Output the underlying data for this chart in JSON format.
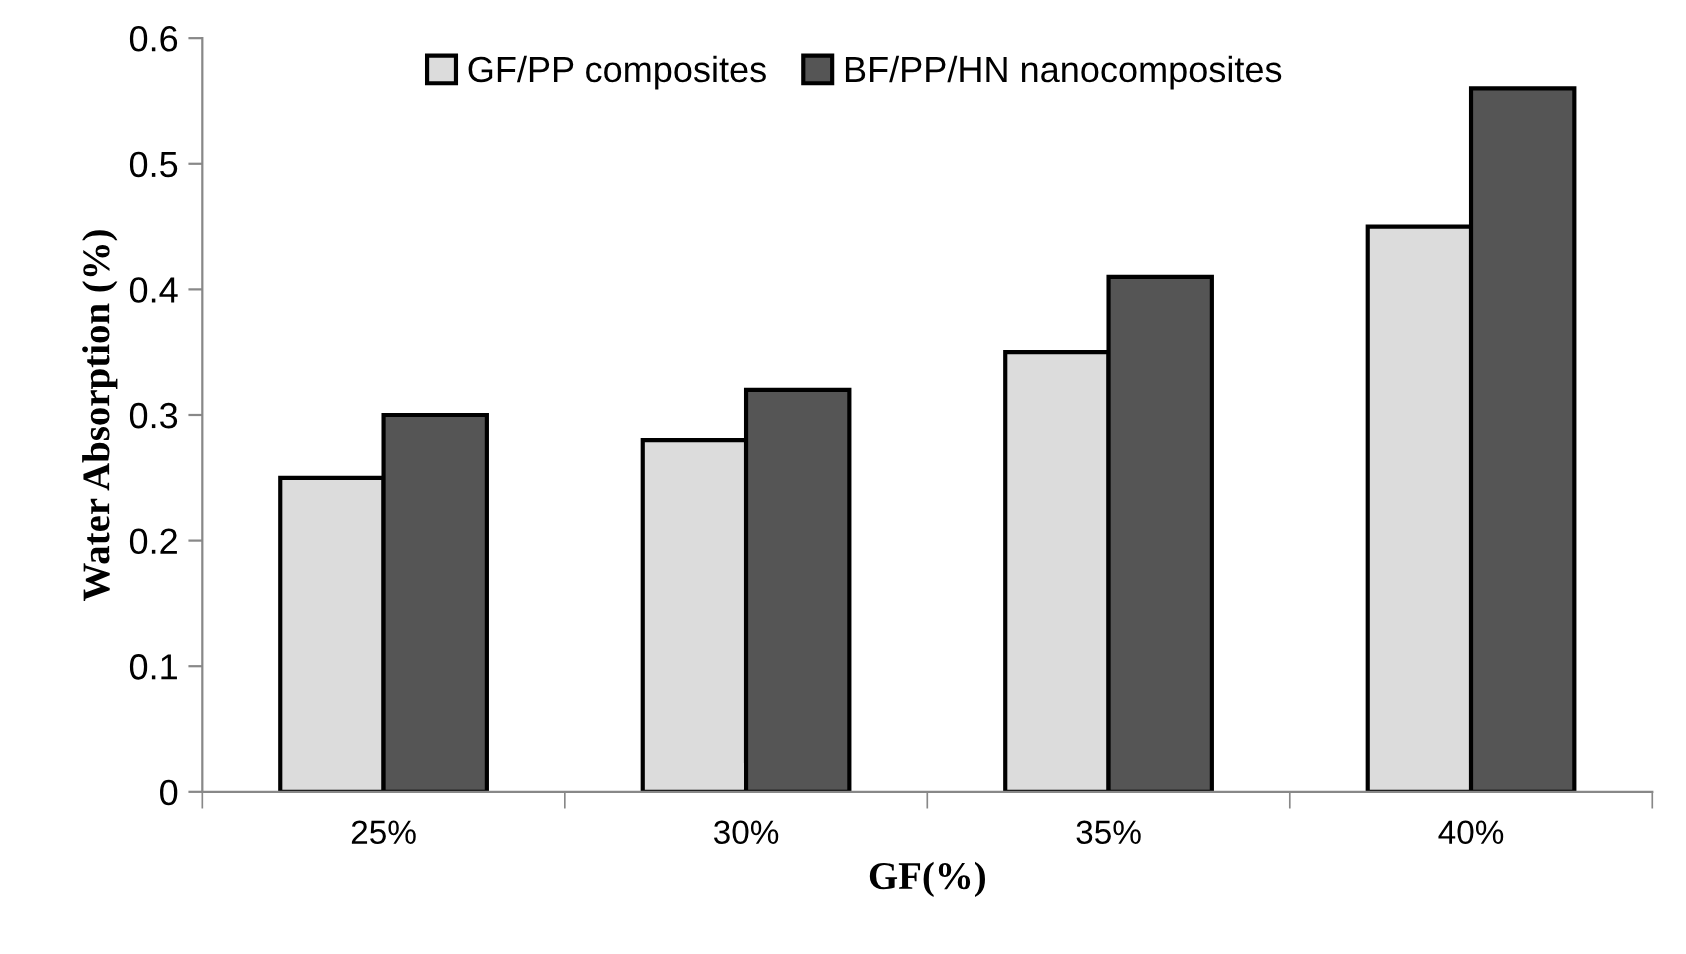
{
  "chart_data": {
    "type": "bar",
    "xlabel": "GF(%)",
    "ylabel": "Water Absorption (%)",
    "categories": [
      "25%",
      "30%",
      "35%",
      "40%"
    ],
    "series": [
      {
        "name": "GF/PP composites",
        "color": "#dcdcdc",
        "values": [
          0.25,
          0.28,
          0.35,
          0.45
        ]
      },
      {
        "name": "BF/PP/HN nanocomposites",
        "color": "#555555",
        "values": [
          0.3,
          0.32,
          0.41,
          0.56
        ]
      }
    ],
    "ylim": [
      0,
      0.6
    ],
    "yticks": [
      {
        "value": 0,
        "label": "0"
      },
      {
        "value": 0.1,
        "label": "0.1"
      },
      {
        "value": 0.2,
        "label": "0.2"
      },
      {
        "value": 0.3,
        "label": "0.3"
      },
      {
        "value": 0.4,
        "label": "0.4"
      },
      {
        "value": 0.5,
        "label": "0.5"
      },
      {
        "value": 0.6,
        "label": "0.6"
      }
    ],
    "grid": false,
    "legend": "top"
  }
}
